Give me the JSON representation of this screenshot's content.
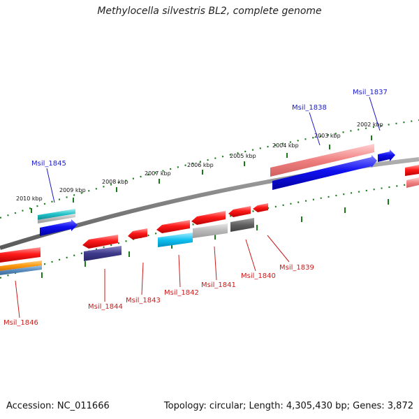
{
  "title": "Methylocella silvestris BL2, complete genome",
  "footer": {
    "accession": "Accession: NC_011666",
    "summary": "Topology: circular; Length: 4,305,430 bp; Genes: 3,872"
  },
  "ticks": [
    "2010 kbp",
    "2009 kbp",
    "2008 kbp",
    "2007 kbp",
    "2006 kbp",
    "2005 kbp",
    "2004 kbp",
    "2003 kbp",
    "2002 kbp"
  ],
  "genes": [
    {
      "name": "Msil_1846",
      "strand": "minus"
    },
    {
      "name": "Msil_1845",
      "strand": "plus"
    },
    {
      "name": "Msil_1844",
      "strand": "minus"
    },
    {
      "name": "Msil_1843",
      "strand": "minus"
    },
    {
      "name": "Msil_1842",
      "strand": "minus"
    },
    {
      "name": "Msil_1841",
      "strand": "minus"
    },
    {
      "name": "Msil_1840",
      "strand": "minus"
    },
    {
      "name": "Msil_1839",
      "strand": "minus"
    },
    {
      "name": "Msil_1838",
      "strand": "plus"
    },
    {
      "name": "Msil_1837",
      "strand": "plus"
    }
  ],
  "colors": {
    "plus_label": "#1a1acc",
    "minus_label": "#cc1a1a",
    "backbone": "#808080",
    "tick": "#1a7a1a",
    "forward_gene": "#1010e0",
    "reverse_gene": "#e01010"
  }
}
